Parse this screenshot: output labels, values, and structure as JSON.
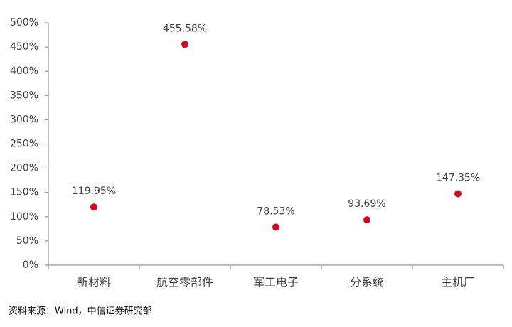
{
  "chart_data": {
    "type": "dot",
    "categories": [
      "新材料",
      "航空零部件",
      "军工电子",
      "分系统",
      "主机厂"
    ],
    "values": [
      119.95,
      455.58,
      78.53,
      93.69,
      147.35
    ],
    "value_labels": [
      "119.95%",
      "455.58%",
      "78.53%",
      "93.69%",
      "147.35%"
    ],
    "color": "#d40a1e",
    "ylim": [
      0,
      500
    ],
    "yticks": [
      {
        "value": 0,
        "label": "0%"
      },
      {
        "value": 50,
        "label": "50%"
      },
      {
        "value": 100,
        "label": "100%"
      },
      {
        "value": 150,
        "label": "150%"
      },
      {
        "value": 200,
        "label": "200%"
      },
      {
        "value": 250,
        "label": "250%"
      },
      {
        "value": 300,
        "label": "300%"
      },
      {
        "value": 350,
        "label": "350%"
      },
      {
        "value": 400,
        "label": "400%"
      },
      {
        "value": 450,
        "label": "450%"
      },
      {
        "value": 500,
        "label": "500%"
      }
    ],
    "source": "资料来源：Wind，中信证券研究部"
  }
}
